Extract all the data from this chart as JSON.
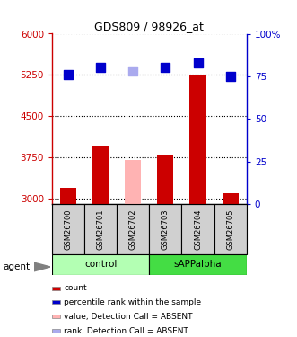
{
  "title": "GDS809 / 98926_at",
  "samples": [
    "GSM26700",
    "GSM26701",
    "GSM26702",
    "GSM26703",
    "GSM26704",
    "GSM26705"
  ],
  "bar_colors": [
    "#cc0000",
    "#cc0000",
    "#ffb3b3",
    "#cc0000",
    "#cc0000",
    "#cc0000"
  ],
  "bar_values": [
    3200,
    3950,
    3700,
    3780,
    5250,
    3100
  ],
  "dot_colors": [
    "#0000cc",
    "#0000cc",
    "#aaaaee",
    "#0000cc",
    "#0000cc",
    "#0000cc"
  ],
  "dot_values": [
    76,
    80,
    78,
    80,
    83,
    75
  ],
  "ylim_left": [
    2900,
    6000
  ],
  "ylim_right": [
    0,
    100
  ],
  "yticks_left": [
    3000,
    3750,
    4500,
    5250,
    6000
  ],
  "yticks_right": [
    0,
    25,
    50,
    75,
    100
  ],
  "ytick_labels_left": [
    "3000",
    "3750",
    "4500",
    "5250",
    "6000"
  ],
  "ytick_labels_right": [
    "0",
    "25",
    "50",
    "75",
    "100%"
  ],
  "left_axis_color": "#cc0000",
  "right_axis_color": "#0000cc",
  "bar_width": 0.5,
  "dot_size": 55,
  "control_color_light": "#b3ffb3",
  "control_color_dark": "#55dd55",
  "sample_row_color": "#d0d0d0",
  "legend_items": [
    {
      "label": "count",
      "color": "#cc0000"
    },
    {
      "label": "percentile rank within the sample",
      "color": "#0000cc"
    },
    {
      "label": "value, Detection Call = ABSENT",
      "color": "#ffb3b3"
    },
    {
      "label": "rank, Detection Call = ABSENT",
      "color": "#aaaaee"
    }
  ]
}
